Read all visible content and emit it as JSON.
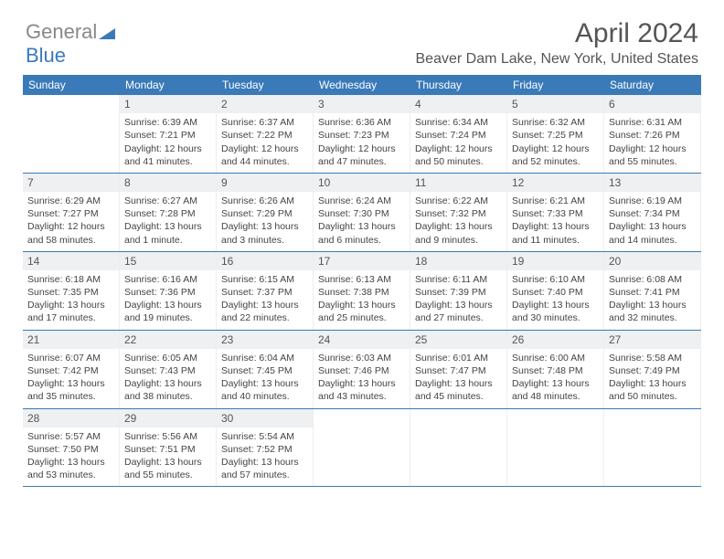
{
  "logo": {
    "part1": "General",
    "part2": "Blue"
  },
  "title": "April 2024",
  "subtitle": "Beaver Dam Lake, New York, United States",
  "colors": {
    "header_bg": "#3a7ab8",
    "header_text": "#ffffff",
    "daynum_bg": "#eef0f2",
    "border": "#3a7ab8",
    "text": "#444444"
  },
  "weekdays": [
    "Sunday",
    "Monday",
    "Tuesday",
    "Wednesday",
    "Thursday",
    "Friday",
    "Saturday"
  ],
  "weeks": [
    [
      null,
      {
        "n": "1",
        "sr": "Sunrise: 6:39 AM",
        "ss": "Sunset: 7:21 PM",
        "dl1": "Daylight: 12 hours",
        "dl2": "and 41 minutes."
      },
      {
        "n": "2",
        "sr": "Sunrise: 6:37 AM",
        "ss": "Sunset: 7:22 PM",
        "dl1": "Daylight: 12 hours",
        "dl2": "and 44 minutes."
      },
      {
        "n": "3",
        "sr": "Sunrise: 6:36 AM",
        "ss": "Sunset: 7:23 PM",
        "dl1": "Daylight: 12 hours",
        "dl2": "and 47 minutes."
      },
      {
        "n": "4",
        "sr": "Sunrise: 6:34 AM",
        "ss": "Sunset: 7:24 PM",
        "dl1": "Daylight: 12 hours",
        "dl2": "and 50 minutes."
      },
      {
        "n": "5",
        "sr": "Sunrise: 6:32 AM",
        "ss": "Sunset: 7:25 PM",
        "dl1": "Daylight: 12 hours",
        "dl2": "and 52 minutes."
      },
      {
        "n": "6",
        "sr": "Sunrise: 6:31 AM",
        "ss": "Sunset: 7:26 PM",
        "dl1": "Daylight: 12 hours",
        "dl2": "and 55 minutes."
      }
    ],
    [
      {
        "n": "7",
        "sr": "Sunrise: 6:29 AM",
        "ss": "Sunset: 7:27 PM",
        "dl1": "Daylight: 12 hours",
        "dl2": "and 58 minutes."
      },
      {
        "n": "8",
        "sr": "Sunrise: 6:27 AM",
        "ss": "Sunset: 7:28 PM",
        "dl1": "Daylight: 13 hours",
        "dl2": "and 1 minute."
      },
      {
        "n": "9",
        "sr": "Sunrise: 6:26 AM",
        "ss": "Sunset: 7:29 PM",
        "dl1": "Daylight: 13 hours",
        "dl2": "and 3 minutes."
      },
      {
        "n": "10",
        "sr": "Sunrise: 6:24 AM",
        "ss": "Sunset: 7:30 PM",
        "dl1": "Daylight: 13 hours",
        "dl2": "and 6 minutes."
      },
      {
        "n": "11",
        "sr": "Sunrise: 6:22 AM",
        "ss": "Sunset: 7:32 PM",
        "dl1": "Daylight: 13 hours",
        "dl2": "and 9 minutes."
      },
      {
        "n": "12",
        "sr": "Sunrise: 6:21 AM",
        "ss": "Sunset: 7:33 PM",
        "dl1": "Daylight: 13 hours",
        "dl2": "and 11 minutes."
      },
      {
        "n": "13",
        "sr": "Sunrise: 6:19 AM",
        "ss": "Sunset: 7:34 PM",
        "dl1": "Daylight: 13 hours",
        "dl2": "and 14 minutes."
      }
    ],
    [
      {
        "n": "14",
        "sr": "Sunrise: 6:18 AM",
        "ss": "Sunset: 7:35 PM",
        "dl1": "Daylight: 13 hours",
        "dl2": "and 17 minutes."
      },
      {
        "n": "15",
        "sr": "Sunrise: 6:16 AM",
        "ss": "Sunset: 7:36 PM",
        "dl1": "Daylight: 13 hours",
        "dl2": "and 19 minutes."
      },
      {
        "n": "16",
        "sr": "Sunrise: 6:15 AM",
        "ss": "Sunset: 7:37 PM",
        "dl1": "Daylight: 13 hours",
        "dl2": "and 22 minutes."
      },
      {
        "n": "17",
        "sr": "Sunrise: 6:13 AM",
        "ss": "Sunset: 7:38 PM",
        "dl1": "Daylight: 13 hours",
        "dl2": "and 25 minutes."
      },
      {
        "n": "18",
        "sr": "Sunrise: 6:11 AM",
        "ss": "Sunset: 7:39 PM",
        "dl1": "Daylight: 13 hours",
        "dl2": "and 27 minutes."
      },
      {
        "n": "19",
        "sr": "Sunrise: 6:10 AM",
        "ss": "Sunset: 7:40 PM",
        "dl1": "Daylight: 13 hours",
        "dl2": "and 30 minutes."
      },
      {
        "n": "20",
        "sr": "Sunrise: 6:08 AM",
        "ss": "Sunset: 7:41 PM",
        "dl1": "Daylight: 13 hours",
        "dl2": "and 32 minutes."
      }
    ],
    [
      {
        "n": "21",
        "sr": "Sunrise: 6:07 AM",
        "ss": "Sunset: 7:42 PM",
        "dl1": "Daylight: 13 hours",
        "dl2": "and 35 minutes."
      },
      {
        "n": "22",
        "sr": "Sunrise: 6:05 AM",
        "ss": "Sunset: 7:43 PM",
        "dl1": "Daylight: 13 hours",
        "dl2": "and 38 minutes."
      },
      {
        "n": "23",
        "sr": "Sunrise: 6:04 AM",
        "ss": "Sunset: 7:45 PM",
        "dl1": "Daylight: 13 hours",
        "dl2": "and 40 minutes."
      },
      {
        "n": "24",
        "sr": "Sunrise: 6:03 AM",
        "ss": "Sunset: 7:46 PM",
        "dl1": "Daylight: 13 hours",
        "dl2": "and 43 minutes."
      },
      {
        "n": "25",
        "sr": "Sunrise: 6:01 AM",
        "ss": "Sunset: 7:47 PM",
        "dl1": "Daylight: 13 hours",
        "dl2": "and 45 minutes."
      },
      {
        "n": "26",
        "sr": "Sunrise: 6:00 AM",
        "ss": "Sunset: 7:48 PM",
        "dl1": "Daylight: 13 hours",
        "dl2": "and 48 minutes."
      },
      {
        "n": "27",
        "sr": "Sunrise: 5:58 AM",
        "ss": "Sunset: 7:49 PM",
        "dl1": "Daylight: 13 hours",
        "dl2": "and 50 minutes."
      }
    ],
    [
      {
        "n": "28",
        "sr": "Sunrise: 5:57 AM",
        "ss": "Sunset: 7:50 PM",
        "dl1": "Daylight: 13 hours",
        "dl2": "and 53 minutes."
      },
      {
        "n": "29",
        "sr": "Sunrise: 5:56 AM",
        "ss": "Sunset: 7:51 PM",
        "dl1": "Daylight: 13 hours",
        "dl2": "and 55 minutes."
      },
      {
        "n": "30",
        "sr": "Sunrise: 5:54 AM",
        "ss": "Sunset: 7:52 PM",
        "dl1": "Daylight: 13 hours",
        "dl2": "and 57 minutes."
      },
      null,
      null,
      null,
      null
    ]
  ]
}
